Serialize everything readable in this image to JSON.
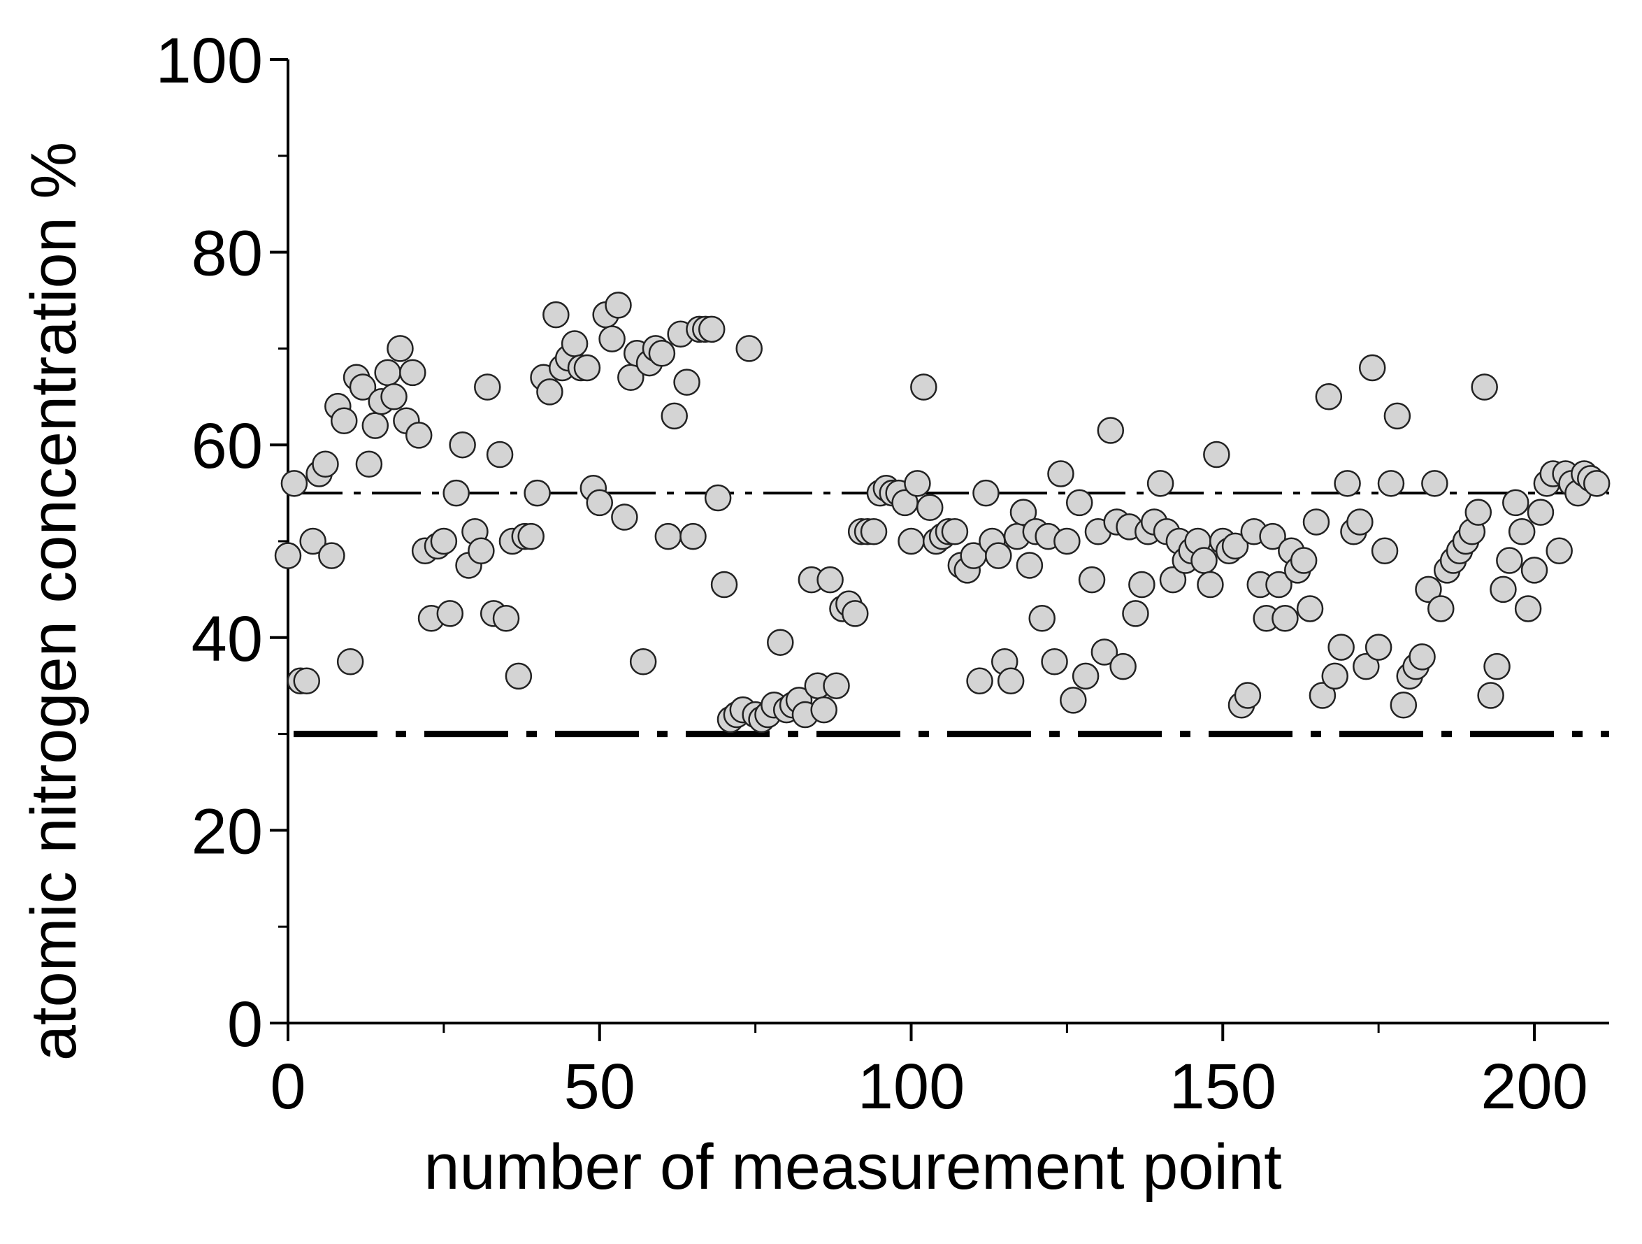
{
  "chart_data": {
    "type": "scatter",
    "xlabel": "number of measurement point",
    "ylabel": "atomic nitrogen concentration %",
    "xlim": [
      0,
      212
    ],
    "ylim": [
      0,
      100
    ],
    "xticks": [
      0,
      50,
      100,
      150,
      200
    ],
    "yticks": [
      0,
      20,
      40,
      60,
      80,
      100
    ],
    "xminorticks": [
      25,
      75,
      125,
      175
    ],
    "yminorticks": [
      10,
      30,
      50,
      70,
      90
    ],
    "hlines": [
      {
        "value": 55,
        "style": "dash-dot",
        "width": 4
      },
      {
        "value": 30,
        "style": "dash-dot",
        "width": 9
      }
    ],
    "grid": false,
    "series": [
      {
        "color": "#d4d4d4",
        "x": [
          0,
          1,
          2,
          3,
          4,
          5,
          6,
          7,
          8,
          9,
          10,
          11,
          12,
          13,
          14,
          15,
          16,
          17,
          18,
          19,
          20,
          21,
          22,
          23,
          24,
          25,
          26,
          27,
          28,
          29,
          30,
          31,
          32,
          33,
          34,
          35,
          36,
          37,
          38,
          39,
          40,
          41,
          42,
          43,
          44,
          45,
          46,
          47,
          48,
          49,
          50,
          51,
          52,
          53,
          54,
          55,
          56,
          57,
          58,
          59,
          60,
          61,
          62,
          63,
          64,
          65,
          66,
          67,
          68,
          69,
          70,
          71,
          72,
          73,
          74,
          75,
          76,
          77,
          78,
          79,
          80,
          81,
          82,
          83,
          84,
          85,
          86,
          87,
          88,
          89,
          90,
          91,
          92,
          93,
          94,
          95,
          96,
          97,
          98,
          99,
          100,
          101,
          102,
          103,
          104,
          105,
          106,
          107,
          108,
          109,
          110,
          111,
          112,
          113,
          114,
          115,
          116,
          117,
          118,
          119,
          120,
          121,
          122,
          123,
          124,
          125,
          126,
          127,
          128,
          129,
          130,
          131,
          132,
          133,
          134,
          135,
          136,
          137,
          138,
          139,
          140,
          141,
          142,
          143,
          144,
          145,
          146,
          147,
          148,
          149,
          150,
          151,
          152,
          153,
          154,
          155,
          156,
          157,
          158,
          159,
          160,
          161,
          162,
          163,
          164,
          165,
          166,
          167,
          168,
          169,
          170,
          171,
          172,
          173,
          174,
          175,
          176,
          177,
          178,
          179,
          180,
          181,
          182,
          183,
          184,
          185,
          186,
          187,
          188,
          189,
          190,
          191,
          192,
          193,
          194,
          195,
          196,
          197,
          198,
          199,
          200,
          201,
          202,
          203,
          204,
          205,
          206,
          207,
          208,
          209,
          210
        ],
        "values": [
          48.5,
          56,
          35.5,
          35.5,
          50,
          57,
          58,
          48.5,
          64,
          62.5,
          37.5,
          67,
          66,
          58,
          62,
          64.5,
          67.5,
          65,
          70,
          62.5,
          67.5,
          61,
          49,
          42,
          49.5,
          50,
          42.5,
          55,
          60,
          47.5,
          51,
          49,
          66,
          42.5,
          59,
          42,
          50,
          36,
          50.5,
          50.5,
          55,
          67,
          65.5,
          73.5,
          68,
          69,
          70.5,
          68,
          68,
          55.5,
          54,
          73.5,
          71,
          74.5,
          52.5,
          67,
          69.5,
          37.5,
          68.5,
          70,
          69.5,
          50.5,
          63,
          71.5,
          66.5,
          50.5,
          72,
          72,
          72,
          54.5,
          45.5,
          31.5,
          32,
          32.5,
          70,
          32,
          31.5,
          32,
          33,
          39.5,
          32.5,
          33,
          33.5,
          32,
          46,
          35,
          32.5,
          46,
          35,
          43,
          43.5,
          42.5,
          51,
          51,
          51,
          55,
          55.5,
          55,
          55,
          54,
          50,
          56,
          66,
          53.5,
          50,
          50.5,
          51,
          51,
          47.5,
          47,
          48.5,
          35.5,
          55,
          50,
          48.5,
          37.5,
          35.5,
          50.5,
          53,
          47.5,
          51,
          42,
          50.5,
          37.5,
          57,
          50,
          33.5,
          54,
          36,
          46,
          51,
          38.5,
          61.5,
          52,
          37,
          51.5,
          42.5,
          45.5,
          51,
          52,
          56,
          51,
          46,
          50,
          48,
          49,
          50,
          48,
          45.5,
          59,
          50,
          49,
          49.5,
          33,
          34,
          51,
          45.5,
          42,
          50.5,
          45.5,
          42,
          49,
          47,
          48,
          43,
          52,
          34,
          65,
          36,
          39,
          56,
          51,
          52,
          37,
          68,
          39,
          49,
          56,
          63,
          33,
          36,
          37,
          38,
          45,
          56,
          43,
          47,
          48,
          49,
          50,
          51,
          53,
          66,
          34,
          37,
          45,
          48,
          54,
          51,
          43,
          47,
          53,
          56,
          57,
          49,
          57,
          56,
          55,
          57,
          56.5,
          56
        ]
      }
    ]
  }
}
